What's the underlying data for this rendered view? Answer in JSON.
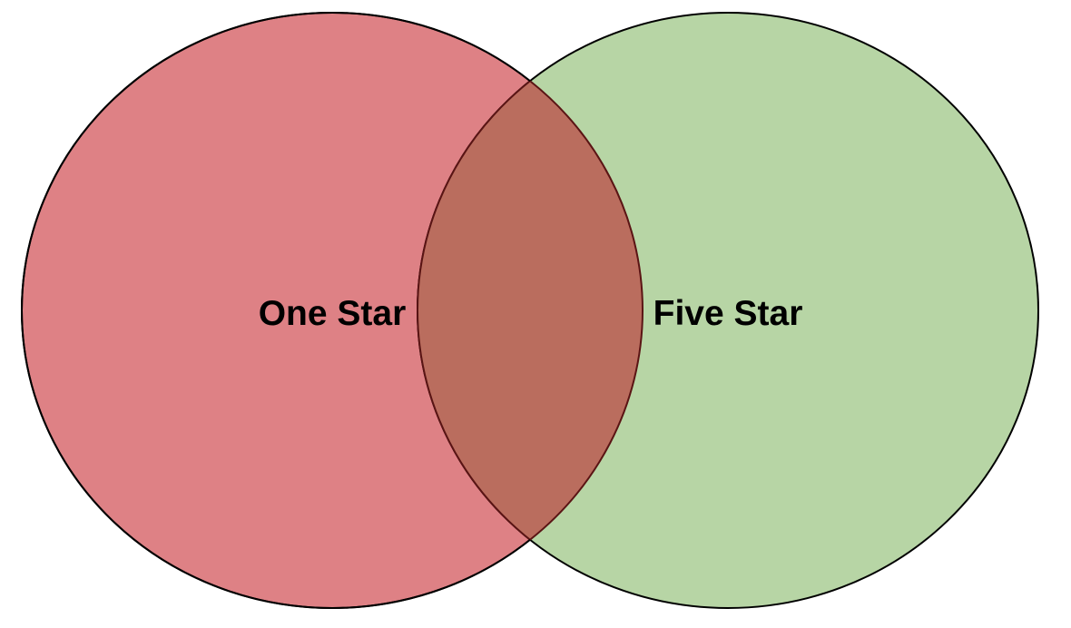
{
  "diagram": {
    "type": "venn",
    "sets": [
      {
        "label": "One Star",
        "fill": "#DE8185",
        "stroke": "#000000"
      },
      {
        "label": "Five Star",
        "fill": "#B7D5A5",
        "stroke": "#000000"
      }
    ],
    "overlap": {
      "fill": "#BA6D5E",
      "stroke": "#5A1414"
    }
  }
}
